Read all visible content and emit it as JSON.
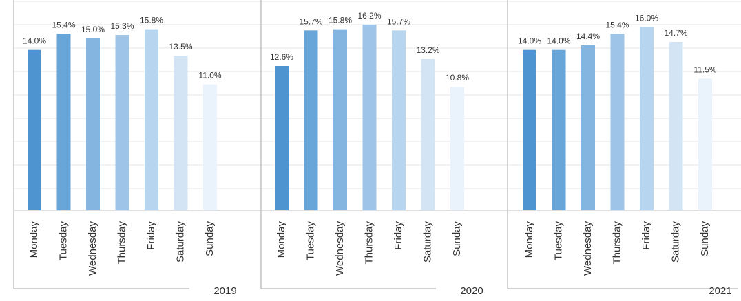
{
  "chart_data": [
    {
      "type": "bar",
      "group_label": "2019",
      "categories": [
        "Monday",
        "Tuesday",
        "Wednesday",
        "Thursday",
        "Friday",
        "Saturday",
        "Sunday"
      ],
      "values": [
        14.0,
        15.4,
        15.0,
        15.3,
        15.8,
        13.5,
        11.0
      ],
      "data_labels": [
        "14.0%",
        "15.4%",
        "15.0%",
        "15.3%",
        "15.8%",
        "13.5%",
        "11.0%"
      ],
      "ylim": [
        0,
        16.2
      ],
      "grid": true
    },
    {
      "type": "bar",
      "group_label": "2020",
      "categories": [
        "Monday",
        "Tuesday",
        "Wednesday",
        "Thursday",
        "Friday",
        "Saturday",
        "Sunday"
      ],
      "values": [
        12.6,
        15.7,
        15.8,
        16.2,
        15.7,
        13.2,
        10.8
      ],
      "data_labels": [
        "12.6%",
        "15.7%",
        "15.8%",
        "16.2%",
        "15.7%",
        "13.2%",
        "10.8%"
      ],
      "ylim": [
        0,
        16.2
      ],
      "grid": true
    },
    {
      "type": "bar",
      "group_label": "2021",
      "categories": [
        "Monday",
        "Tuesday",
        "Wednesday",
        "Thursday",
        "Friday",
        "Saturday",
        "Sunday"
      ],
      "values": [
        14.0,
        14.0,
        14.4,
        15.4,
        16.0,
        14.7,
        11.5
      ],
      "data_labels": [
        "14.0%",
        "14.0%",
        "14.4%",
        "15.4%",
        "16.0%",
        "14.7%",
        "11.5%"
      ],
      "ylim": [
        0,
        16.2
      ],
      "grid": true
    }
  ],
  "colors": {
    "bars": [
      "#4d94d1",
      "#68a6da",
      "#84b5e0",
      "#9ec5e7",
      "#b7d5ee",
      "#d3e5f5",
      "#eaf3fb"
    ],
    "grid": "#e6e6e6",
    "panel_line": "#a6a6a6",
    "axis": "#bfbfbf",
    "text": "#333333"
  }
}
